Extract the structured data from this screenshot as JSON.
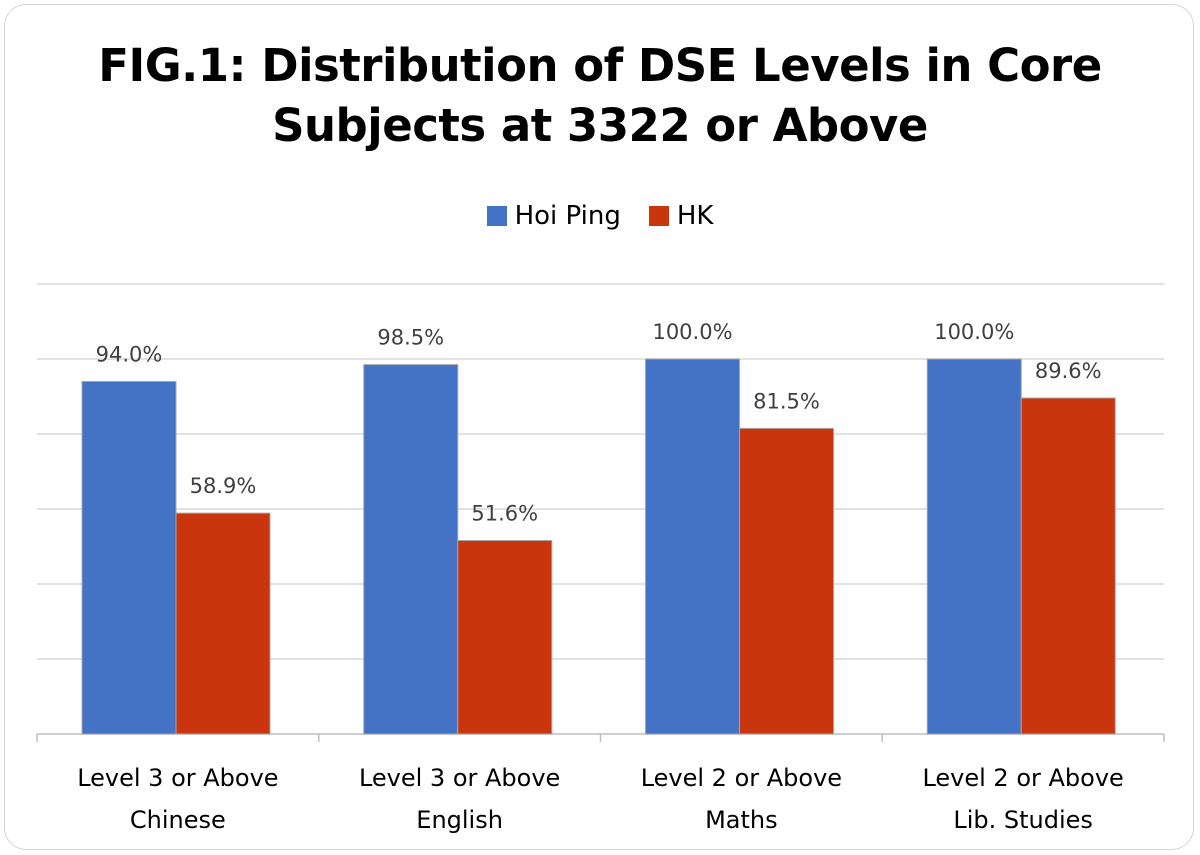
{
  "chart_data": {
    "type": "bar",
    "title_lines": [
      "FIG.1: Distribution of DSE Levels in Core",
      "Subjects at 3322 or Above"
    ],
    "categories": [
      [
        "Level 3 or Above",
        "Chinese"
      ],
      [
        "Level 3 or Above",
        "English"
      ],
      [
        "Level 2 or Above",
        "Maths"
      ],
      [
        "Level 2 or Above",
        "Lib. Studies"
      ]
    ],
    "series": [
      {
        "name": "Hoi Ping",
        "color": "#4472C4",
        "values": [
          94.0,
          98.5,
          100.0,
          100.0
        ],
        "labels": [
          "94.0%",
          "98.5%",
          "100.0%",
          "100.0%"
        ]
      },
      {
        "name": "HK",
        "color": "#C9350C",
        "values": [
          58.9,
          51.6,
          81.5,
          89.6
        ],
        "labels": [
          "58.9%",
          "51.6%",
          "81.5%",
          "89.6%"
        ]
      }
    ],
    "ylim": [
      0,
      120
    ],
    "y_grid_step": 20,
    "grid": true,
    "legend_position": "top"
  }
}
